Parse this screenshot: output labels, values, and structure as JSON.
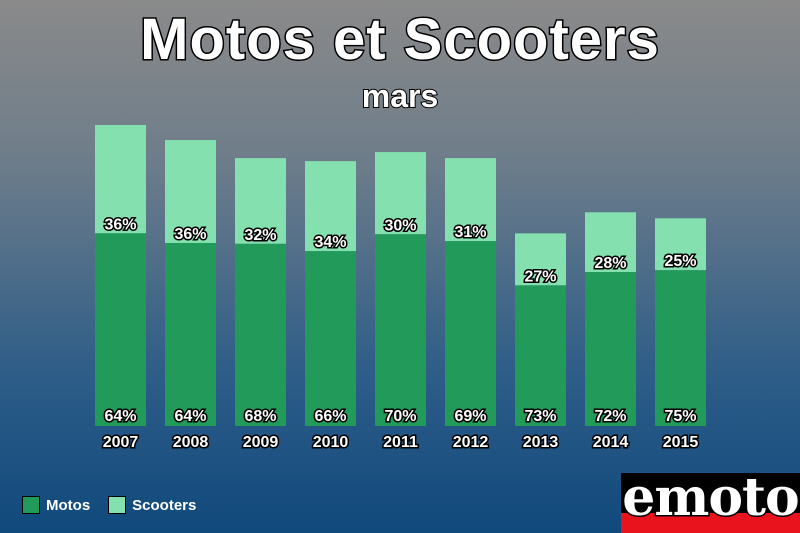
{
  "header": {
    "title": "Motos et Scooters",
    "subtitle": "mars"
  },
  "legend": [
    {
      "label": "Motos",
      "color": "#229a5a"
    },
    {
      "label": "Scooters",
      "color": "#84e0ae"
    }
  ],
  "logo": {
    "text": "emoto"
  },
  "chart_data": {
    "type": "bar",
    "stacked": true,
    "title": "Motos et Scooters",
    "subtitle": "mars",
    "categories": [
      "2007",
      "2008",
      "2009",
      "2010",
      "2011",
      "2012",
      "2013",
      "2014",
      "2015"
    ],
    "totals": [
      100,
      95,
      89,
      88,
      91,
      89,
      64,
      71,
      69
    ],
    "series": [
      {
        "name": "Motos",
        "color": "#229a5a",
        "percent_labels": [
          "64%",
          "64%",
          "68%",
          "66%",
          "70%",
          "69%",
          "73%",
          "72%",
          "75%"
        ]
      },
      {
        "name": "Scooters",
        "color": "#84e0ae",
        "percent_labels": [
          "36%",
          "36%",
          "32%",
          "34%",
          "30%",
          "31%",
          "27%",
          "28%",
          "25%"
        ]
      }
    ],
    "legend_position": "bottom-left",
    "grid": false
  }
}
